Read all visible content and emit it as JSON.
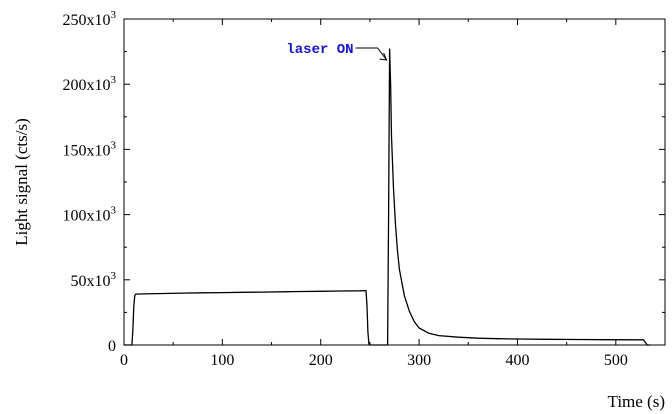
{
  "chart_data": {
    "type": "line",
    "xlabel": "Time (s)",
    "ylabel": "Light signal (cts/s)",
    "xlim": [
      0,
      550
    ],
    "ylim": [
      0,
      250000
    ],
    "x_ticks": [
      0,
      100,
      200,
      300,
      400,
      500
    ],
    "x_tick_labels": [
      "0",
      "100",
      "200",
      "300",
      "400",
      "500"
    ],
    "y_ticks": [
      0,
      50000,
      100000,
      150000,
      200000,
      250000
    ],
    "y_tick_labels": [
      {
        "mantissa": "0",
        "exp": ""
      },
      {
        "mantissa": "50x10",
        "exp": "3"
      },
      {
        "mantissa": "100x10",
        "exp": "3"
      },
      {
        "mantissa": "150x10",
        "exp": "3"
      },
      {
        "mantissa": "200x10",
        "exp": "3"
      },
      {
        "mantissa": "250x10",
        "exp": "3"
      }
    ],
    "grid": false,
    "series": [
      {
        "color": "#000000",
        "x": [
          0,
          8,
          9,
          10,
          11,
          12,
          20,
          40,
          60,
          80,
          100,
          120,
          140,
          160,
          180,
          200,
          220,
          240,
          246,
          247,
          248,
          249,
          250,
          258,
          268,
          269,
          270,
          271,
          272,
          274,
          276,
          278,
          280,
          285,
          290,
          295,
          300,
          310,
          320,
          340,
          360,
          380,
          400,
          430,
          460,
          490,
          520,
          528,
          530,
          532,
          535
        ],
        "y": [
          0,
          0,
          12000,
          30000,
          38000,
          39000,
          39200,
          39500,
          39800,
          40000,
          40200,
          40400,
          40600,
          40800,
          41000,
          41200,
          41400,
          41600,
          41700,
          30000,
          10000,
          1000,
          0,
          0,
          0,
          100000,
          227000,
          200000,
          160000,
          120000,
          92000,
          72000,
          58000,
          38000,
          26000,
          18000,
          13000,
          9000,
          7200,
          6000,
          5200,
          4800,
          4600,
          4400,
          4200,
          4100,
          4000,
          4000,
          2000,
          0,
          0
        ]
      }
    ],
    "annotation": {
      "text": "laser ON",
      "color": "#1515c8",
      "x": 270,
      "y": 227000
    }
  }
}
